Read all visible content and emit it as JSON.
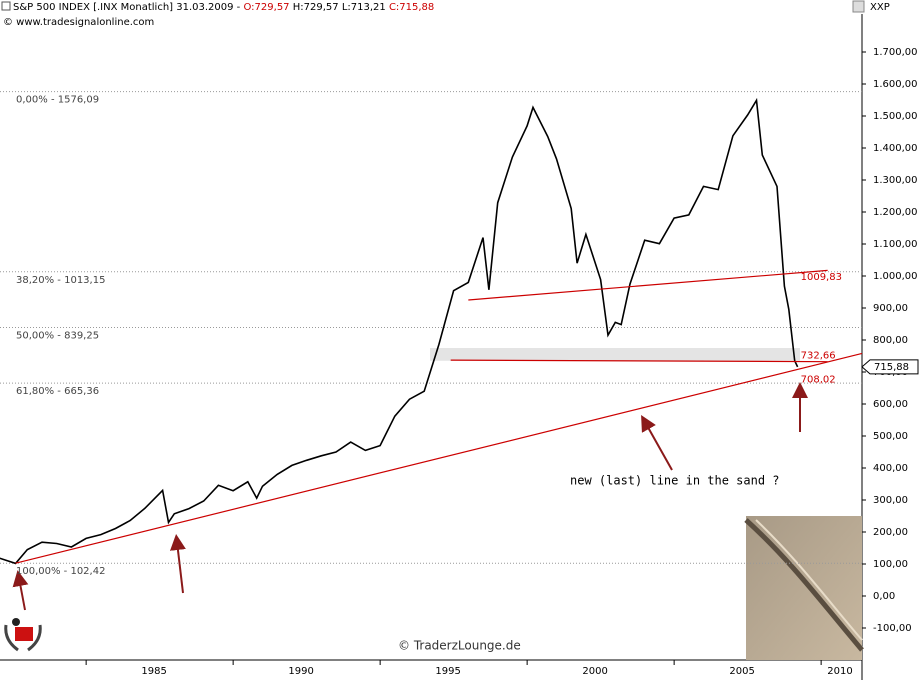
{
  "header": {
    "symbol": "S&P 500 INDEX [.INX  Monatlich] 31.03.2009 -",
    "open": "O:729,57",
    "high": "H:729,57",
    "low": "L:713,21",
    "close": "C:715,88",
    "source": "© www.tradesignalonline.com",
    "corner": "XXP"
  },
  "chart_data": {
    "type": "line",
    "color": "#000000",
    "x": [
      1982.0,
      1982.6,
      1983.0,
      1983.5,
      1984.0,
      1984.5,
      1985.0,
      1985.5,
      1986.0,
      1986.5,
      1987.0,
      1987.6,
      1987.8,
      1988.0,
      1988.5,
      1989.0,
      1989.5,
      1990.0,
      1990.5,
      1990.8,
      1991.0,
      1991.5,
      1992.0,
      1992.5,
      1993.0,
      1993.5,
      1994.0,
      1994.5,
      1995.0,
      1995.5,
      1996.0,
      1996.5,
      1997.0,
      1997.5,
      1998.0,
      1998.5,
      1998.7,
      1999.0,
      1999.5,
      2000.0,
      2000.2,
      2000.7,
      2001.0,
      2001.5,
      2001.7,
      2002.0,
      2002.5,
      2002.75,
      2003.0,
      2003.2,
      2003.5,
      2004.0,
      2004.5,
      2005.0,
      2005.5,
      2006.0,
      2006.5,
      2007.0,
      2007.5,
      2007.8,
      2008.0,
      2008.5,
      2008.75,
      2008.9,
      2009.1,
      2009.2
    ],
    "values": [
      120,
      102,
      145,
      168,
      164,
      153,
      180,
      192,
      211,
      236,
      274,
      330,
      230,
      257,
      273,
      297,
      346,
      329,
      357,
      306,
      343,
      380,
      408,
      424,
      438,
      450,
      481,
      455,
      470,
      562,
      615,
      640,
      786,
      954,
      980,
      1120,
      957,
      1229,
      1372,
      1469,
      1527,
      1436,
      1366,
      1211,
      1040,
      1130,
      989,
      815,
      855,
      848,
      975,
      1112,
      1101,
      1181,
      1191,
      1280,
      1270,
      1438,
      1503,
      1549,
      1378,
      1280,
      968,
      896,
      735,
      716
    ],
    "xlim": [
      1982.07,
      2011.39
    ],
    "ylim": [
      -200,
      1800
    ],
    "xticks": [
      1985,
      1990,
      1995,
      2000,
      2005,
      2010
    ],
    "yticks": [
      {
        "value": -100,
        "label": "-100,00"
      },
      {
        "value": 0,
        "label": "0,00"
      },
      {
        "value": 100,
        "label": "100,00"
      },
      {
        "value": 200,
        "label": "200,00"
      },
      {
        "value": 300,
        "label": "300,00"
      },
      {
        "value": 400,
        "label": "400,00"
      },
      {
        "value": 500,
        "label": "500,00"
      },
      {
        "value": 600,
        "label": "600,00"
      },
      {
        "value": 700,
        "label": "700,00"
      },
      {
        "value": 800,
        "label": "800,00"
      },
      {
        "value": 900,
        "label": "900,00"
      },
      {
        "value": 1000,
        "label": "1.000,00"
      },
      {
        "value": 1100,
        "label": "1.100,00"
      },
      {
        "value": 1200,
        "label": "1.200,00"
      },
      {
        "value": 1300,
        "label": "1.300,00"
      },
      {
        "value": 1400,
        "label": "1.400,00"
      },
      {
        "value": 1500,
        "label": "1.500,00"
      },
      {
        "value": 1600,
        "label": "1.600,00"
      },
      {
        "value": 1700,
        "label": "1.700,00"
      }
    ],
    "fib_levels": [
      {
        "value": 1576.09,
        "label": "0,00% - 1576,09"
      },
      {
        "value": 1013.15,
        "label": "38,20% - 1013,15"
      },
      {
        "value": 839.25,
        "label": "50,00% - 839,25"
      },
      {
        "value": 665.36,
        "label": "61,80% - 665,36"
      },
      {
        "value": 102.42,
        "label": "100,00% - 102,42"
      }
    ],
    "trendlines": [
      {
        "x": [
          1982.6,
          2009.2
        ],
        "y": [
          102.42,
          708.02
        ],
        "label": "708,02",
        "color": "#cc0000"
      },
      {
        "x": [
          1998.0,
          2009.2
        ],
        "y": [
          925,
          1009.83
        ],
        "label": "1009,83",
        "color": "#cc0000"
      },
      {
        "x": [
          1997.4,
          2009.2
        ],
        "y": [
          737,
          732.66
        ],
        "label": "732,66",
        "color": "#cc0000"
      }
    ],
    "last_price": {
      "value": 715.88,
      "label": "715,88"
    },
    "annotation": "new (last) line in the sand ?",
    "watermark": "© TraderzLounge.de"
  }
}
